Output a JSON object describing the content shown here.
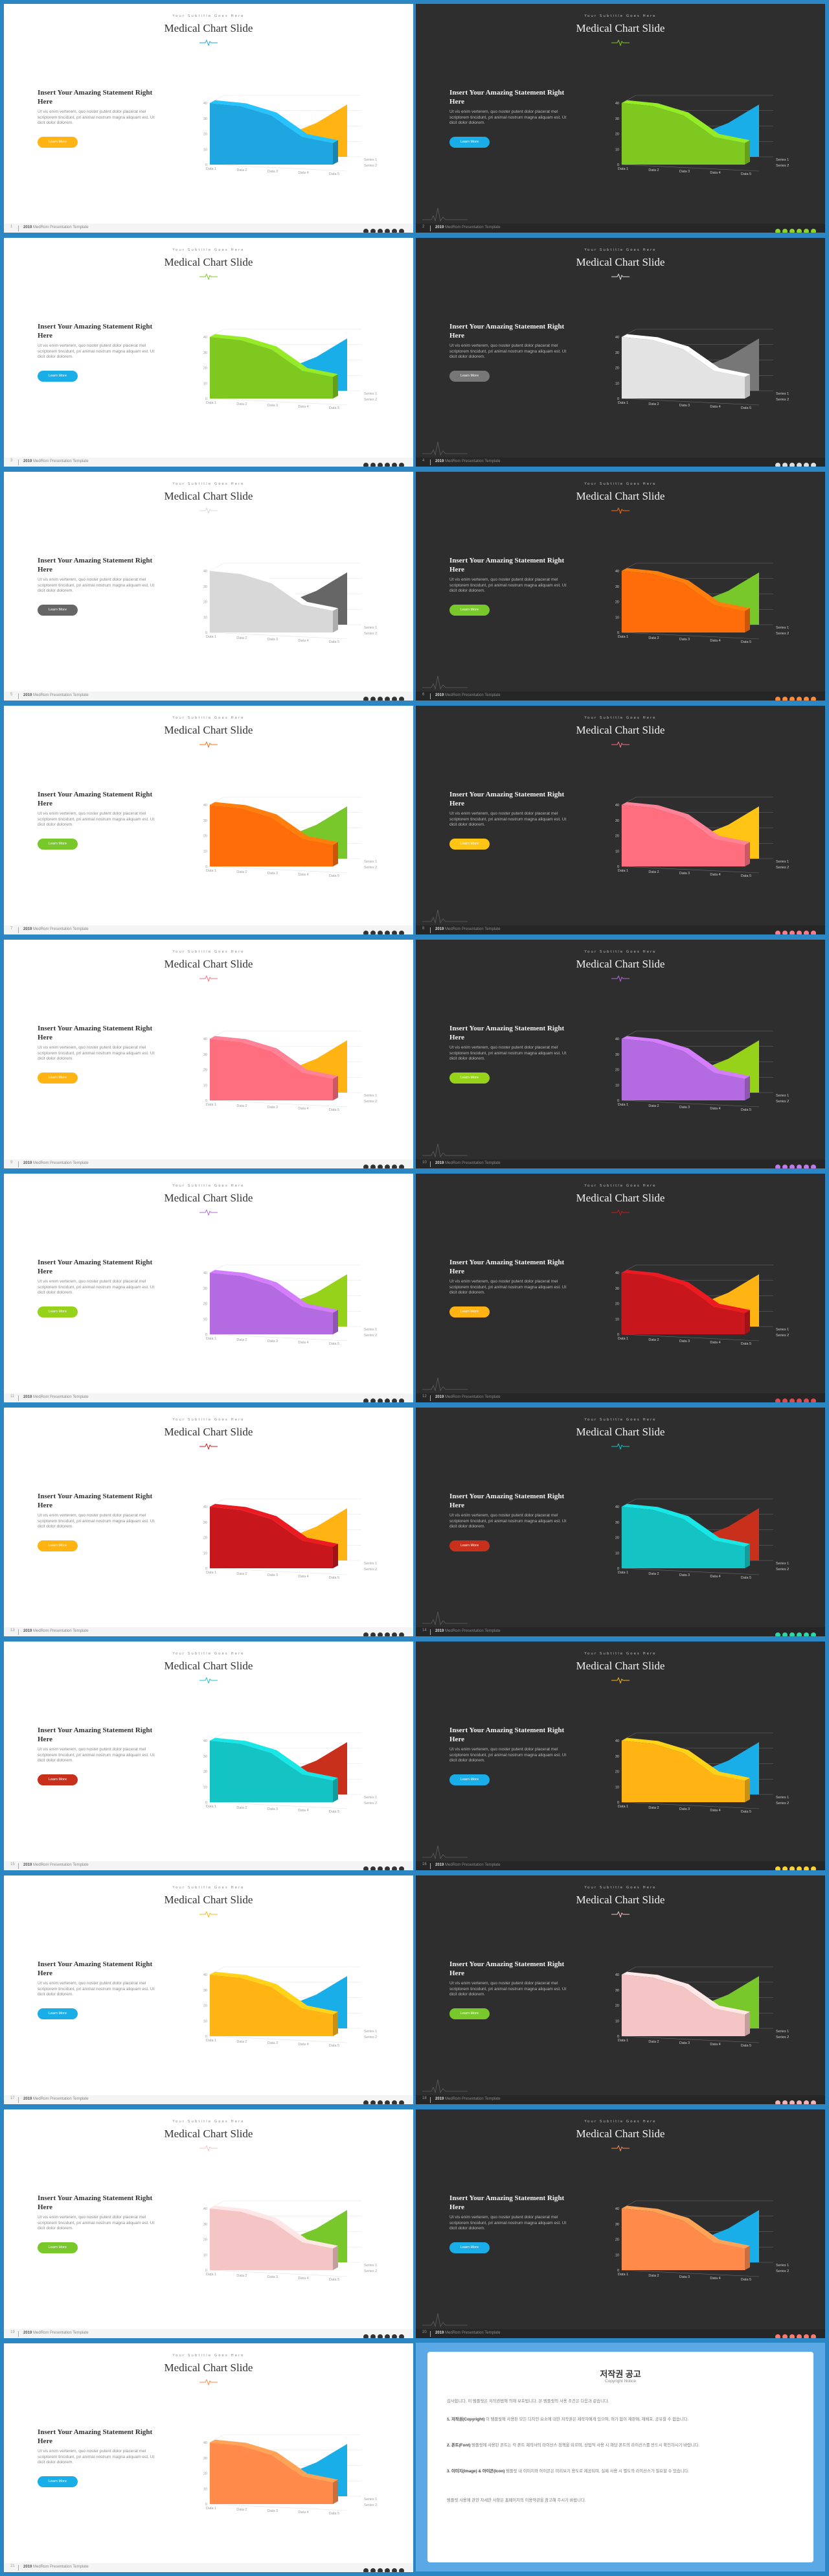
{
  "slide_common": {
    "subtitle": "Your Subtitle Goes Here",
    "title": "Medical Chart Slide",
    "heading": "Insert Your Amazing Statement Right Here",
    "body": "Ut vis enim verterem, quo noster putent dolor placerat mel scriptorem tincidunt, pri animal nostrum magna aliquam est. Ut dicit dolor dolorem.",
    "button": "Learn More",
    "footer_brand_bold": "2019",
    "footer_brand_rest": " MedRom Presentation Template"
  },
  "chart_data": {
    "type": "area",
    "categories": [
      "Data 1",
      "Data 2",
      "Data 3",
      "Data 4",
      "Data 5"
    ],
    "series": [
      {
        "name": "Series 1",
        "values": [
          40,
          38,
          32,
          18,
          14
        ]
      },
      {
        "name": "Series 2",
        "values": [
          10,
          10,
          14,
          22,
          34
        ]
      }
    ],
    "ylim": [
      0,
      40
    ],
    "yticks": [
      "0",
      "10",
      "20",
      "30",
      "40"
    ],
    "grid": true
  },
  "slides": [
    {
      "num": "1",
      "theme": "light",
      "main": "#1fa6e0",
      "second": "#ffb414",
      "btn": "#ffb414",
      "dots": [
        "#333",
        "#333",
        "#333",
        "#333",
        "#333",
        "#333"
      ]
    },
    {
      "num": "2",
      "theme": "dark",
      "main": "#7ec820",
      "second": "#1aaee8",
      "btn": "#1aaee8",
      "dots": [
        "#8ad42c",
        "#8ad42c",
        "#8ad42c",
        "#8ad42c",
        "#8ad42c",
        "#8ad42c"
      ]
    },
    {
      "num": "3",
      "theme": "light",
      "main": "#7ec820",
      "second": "#1aaee8",
      "btn": "#1aaee8",
      "dots": [
        "#333",
        "#333",
        "#333",
        "#333",
        "#333",
        "#333"
      ]
    },
    {
      "num": "4",
      "theme": "dark",
      "main": "#e3e3e3",
      "second": "#777777",
      "btn": "#777777",
      "dots": [
        "#ddd",
        "#ddd",
        "#ddd",
        "#ddd",
        "#ddd",
        "#ddd"
      ]
    },
    {
      "num": "5",
      "theme": "light",
      "main": "#d8d8d8",
      "second": "#666666",
      "btn": "#666666",
      "dots": [
        "#333",
        "#333",
        "#333",
        "#333",
        "#333",
        "#333"
      ]
    },
    {
      "num": "6",
      "theme": "dark",
      "main": "#ff6c0a",
      "second": "#78c82c",
      "btn": "#78c82c",
      "dots": [
        "#ff8a3a",
        "#ff8a3a",
        "#ff8a3a",
        "#ff8a3a",
        "#ff8a3a",
        "#ff8a3a"
      ]
    },
    {
      "num": "7",
      "theme": "light",
      "main": "#ff6c0a",
      "second": "#78c82c",
      "btn": "#78c82c",
      "dots": [
        "#333",
        "#333",
        "#333",
        "#333",
        "#333",
        "#333"
      ]
    },
    {
      "num": "8",
      "theme": "dark",
      "main": "#ff6e7f",
      "second": "#ffc414",
      "btn": "#ffc414",
      "dots": [
        "#ff7b8a",
        "#ff7b8a",
        "#ff7b8a",
        "#ff7b8a",
        "#ff7b8a",
        "#ff7b8a"
      ]
    },
    {
      "num": "9",
      "theme": "light",
      "main": "#ff6e7f",
      "second": "#ffb414",
      "btn": "#ffb414",
      "dots": [
        "#333",
        "#333",
        "#333",
        "#333",
        "#333",
        "#333"
      ]
    },
    {
      "num": "10",
      "theme": "dark",
      "main": "#b46ae0",
      "second": "#96d21a",
      "btn": "#96d21a",
      "dots": [
        "#c07ae8",
        "#c07ae8",
        "#c07ae8",
        "#c07ae8",
        "#c07ae8",
        "#c07ae8"
      ]
    },
    {
      "num": "11",
      "theme": "light",
      "main": "#b46ae0",
      "second": "#96d21a",
      "btn": "#96d21a",
      "dots": [
        "#333",
        "#333",
        "#333",
        "#333",
        "#333",
        "#333"
      ]
    },
    {
      "num": "12",
      "theme": "dark",
      "main": "#c8171c",
      "second": "#ffb414",
      "btn": "#ffb414",
      "dots": [
        "#e04a4e",
        "#e04a4e",
        "#e04a4e",
        "#e04a4e",
        "#e04a4e",
        "#e04a4e"
      ]
    },
    {
      "num": "13",
      "theme": "light",
      "main": "#c8171c",
      "second": "#ffb414",
      "btn": "#ffb414",
      "dots": [
        "#333",
        "#333",
        "#333",
        "#333",
        "#333",
        "#333"
      ]
    },
    {
      "num": "14",
      "theme": "dark",
      "main": "#14c4c4",
      "second": "#c8301c",
      "btn": "#c8301c",
      "dots": [
        "#2ad6a8",
        "#2ad6a8",
        "#2ad6a8",
        "#2ad6a8",
        "#2ad6a8",
        "#2ad6a8"
      ]
    },
    {
      "num": "15",
      "theme": "light",
      "main": "#14c4c4",
      "second": "#c8301c",
      "btn": "#c8301c",
      "dots": [
        "#333",
        "#333",
        "#333",
        "#333",
        "#333",
        "#333"
      ]
    },
    {
      "num": "16",
      "theme": "dark",
      "main": "#ffb414",
      "second": "#1aaee8",
      "btn": "#1aaee8",
      "dots": [
        "#ffd22c",
        "#ffd22c",
        "#ffd22c",
        "#ffd22c",
        "#ffd22c",
        "#ffd22c"
      ]
    },
    {
      "num": "17",
      "theme": "light",
      "main": "#ffb414",
      "second": "#1aaee8",
      "btn": "#1aaee8",
      "dots": [
        "#333",
        "#333",
        "#333",
        "#333",
        "#333",
        "#333"
      ]
    },
    {
      "num": "18",
      "theme": "dark",
      "main": "#f5c4c4",
      "second": "#78c82c",
      "btn": "#78c82c",
      "dots": [
        "#f5b4b4",
        "#f5b4b4",
        "#f5b4b4",
        "#f5b4b4",
        "#f5b4b4",
        "#f5b4b4"
      ]
    },
    {
      "num": "19",
      "theme": "light",
      "main": "#f5c4c4",
      "second": "#78c82c",
      "btn": "#78c82c",
      "dots": [
        "#333",
        "#333",
        "#333",
        "#333",
        "#333",
        "#333"
      ]
    },
    {
      "num": "20",
      "theme": "dark",
      "main": "#ff8a4a",
      "second": "#1aaee8",
      "btn": "#1aaee8",
      "dots": [
        "#ff7a6a",
        "#ff7a6a",
        "#ff7a6a",
        "#ff7a6a",
        "#ff7a6a",
        "#ff7a6a"
      ]
    },
    {
      "num": "21",
      "theme": "light",
      "main": "#ff8a4a",
      "second": "#1aaee8",
      "btn": "#1aaee8",
      "dots": [
        "#333",
        "#333",
        "#333",
        "#333",
        "#333",
        "#333"
      ]
    }
  ],
  "copyright": {
    "title": "저작권 공고",
    "subtitle": "Copyright Notice",
    "intro": "감사합니다. 이 템플릿은 저작권법에 의해 보호됩니다. 본 템플릿의 사용 조건은 다음과 같습니다.",
    "p1_label": "1. 저작권(Copyright)",
    "p1": "이 템플릿에 사용된 모든 디자인 요소에 대한 저작권은 제작자에게 있으며, 허가 없이 재판매, 재배포, 공유할 수 없습니다.",
    "p2_label": "2. 폰트(Font)",
    "p2": "템플릿에 사용된 폰트는 각 폰트 제작사의 라이선스 정책을 따르며, 상업적 사용 시 해당 폰트의 라이선스를 반드시 확인하시기 바랍니다.",
    "p3_label": "3. 이미지(Image) & 아이콘(Icon)",
    "p3": "템플릿 내 이미지와 아이콘은 미리보기 용도로 제공되며, 실제 사용 시 별도의 라이선스가 필요할 수 있습니다.",
    "outro": "템플릿 사용에 관한 자세한 사항은 홈페이지의 이용약관을 참고해 주시기 바랍니다."
  }
}
